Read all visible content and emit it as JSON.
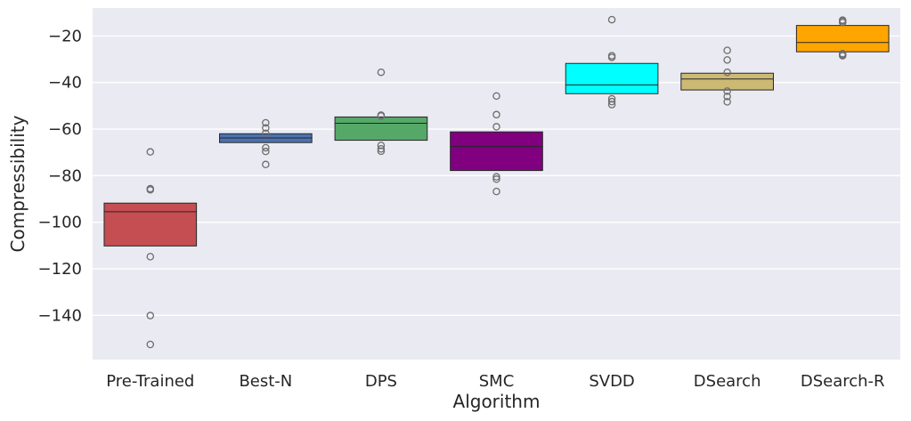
{
  "chart_data": {
    "type": "boxplot",
    "title": "",
    "xlabel": "Algorithm",
    "ylabel": "Compressibility",
    "ylim": [
      -159,
      -8
    ],
    "yticks": [
      -20,
      -40,
      -60,
      -80,
      -100,
      -120,
      -140
    ],
    "ytick_labels": [
      "−20",
      "−40",
      "−60",
      "−80",
      "−100",
      "−120",
      "−140"
    ],
    "grid": true,
    "categories": [
      "Pre-Trained",
      "Best-N",
      "DPS",
      "SMC",
      "SVDD",
      "DSearch",
      "DSearch-R"
    ],
    "boxes": [
      {
        "name": "Pre-Trained",
        "color": "#c44e52",
        "q1": -110.2,
        "median": -95.5,
        "q3": -91.8,
        "outliers": [
          -69.8,
          -85.6,
          -86.1,
          -114.8,
          -140.1,
          -152.5
        ]
      },
      {
        "name": "Best-N",
        "color": "#4c72b0",
        "q1": -65.8,
        "median": -63.8,
        "q3": -62.0,
        "outliers": [
          -57.3,
          -59.5,
          -61.8,
          -68.0,
          -69.6,
          -75.2
        ]
      },
      {
        "name": "DPS",
        "color": "#55a868",
        "q1": -64.8,
        "median": -57.5,
        "q3": -54.8,
        "outliers": [
          -35.6,
          -54.0,
          -54.4,
          -67.0,
          -68.5,
          -69.5
        ]
      },
      {
        "name": "SMC",
        "color": "#800080",
        "q1": -77.8,
        "median": -67.5,
        "q3": -61.2,
        "outliers": [
          -45.8,
          -53.8,
          -59.0,
          -80.5,
          -81.5,
          -86.8
        ]
      },
      {
        "name": "SVDD",
        "color": "#00ffff",
        "q1": -44.8,
        "median": -41.0,
        "q3": -31.8,
        "outliers": [
          -13.0,
          -28.5,
          -29.2,
          -47.0,
          -48.2,
          -49.5
        ]
      },
      {
        "name": "DSearch",
        "color": "#ccb974",
        "q1": -43.2,
        "median": -38.5,
        "q3": -36.0,
        "outliers": [
          -26.2,
          -30.3,
          -35.6,
          -43.7,
          -46.0,
          -48.3
        ]
      },
      {
        "name": "DSearch-R",
        "color": "#ffa500",
        "q1": -26.8,
        "median": -22.8,
        "q3": -15.5,
        "outliers": [
          -13.2,
          -13.6,
          -14.2,
          -27.6,
          -28.1,
          -28.5
        ]
      }
    ]
  }
}
